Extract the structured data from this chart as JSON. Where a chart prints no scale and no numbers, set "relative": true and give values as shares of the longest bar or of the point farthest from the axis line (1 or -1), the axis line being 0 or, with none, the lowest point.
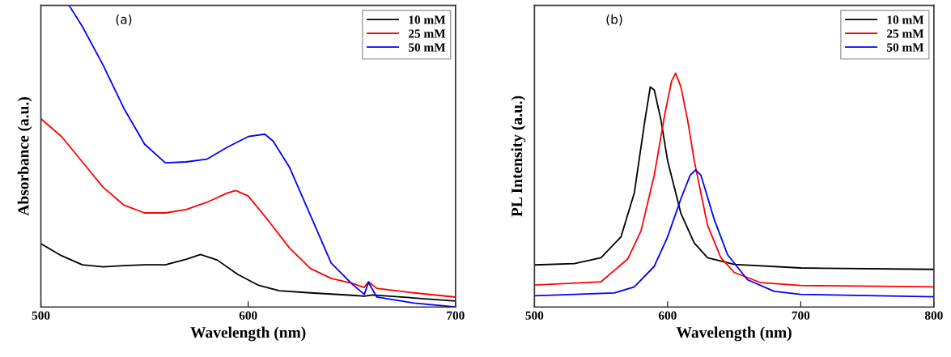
{
  "chart_data": [
    {
      "type": "line",
      "relative": true,
      "xlabel": "Wavelength (nm)",
      "ylabel": "Absorbance (a.u.)",
      "annotations": [
        "(a)"
      ],
      "xlim": [
        500,
        700
      ],
      "xticks": [
        500,
        600,
        700
      ],
      "legend": "top right",
      "grid": false,
      "tick_labels": "x",
      "series": [
        {
          "name": "10 mM",
          "color": "#000000",
          "x": [
            500,
            510,
            520,
            530,
            540,
            550,
            560,
            570,
            577,
            585,
            595,
            605,
            615,
            630,
            650,
            656,
            660,
            680,
            700
          ],
          "values": [
            0.21,
            0.17,
            0.14,
            0.133,
            0.137,
            0.14,
            0.14,
            0.158,
            0.174,
            0.156,
            0.108,
            0.072,
            0.054,
            0.047,
            0.039,
            0.036,
            0.04,
            0.03,
            0.02
          ]
        },
        {
          "name": "25 mM",
          "color": "#ff0000",
          "x": [
            500,
            510,
            520,
            530,
            540,
            550,
            560,
            570,
            580,
            590,
            594,
            600,
            610,
            620,
            630,
            640,
            650,
            656,
            658,
            662,
            680,
            700
          ],
          "values": [
            0.624,
            0.565,
            0.481,
            0.397,
            0.338,
            0.312,
            0.312,
            0.323,
            0.347,
            0.378,
            0.386,
            0.368,
            0.284,
            0.195,
            0.128,
            0.095,
            0.079,
            0.065,
            0.084,
            0.062,
            0.047,
            0.033
          ]
        },
        {
          "name": "50 mM",
          "color": "#0000ff",
          "x": [
            513.6,
            520,
            530,
            540,
            550,
            560,
            570,
            580,
            590,
            600,
            608,
            612,
            620,
            630,
            640,
            650,
            656,
            658,
            662,
            680,
            700
          ],
          "values": [
            1.0,
            0.93,
            0.802,
            0.659,
            0.54,
            0.478,
            0.481,
            0.49,
            0.53,
            0.565,
            0.573,
            0.55,
            0.462,
            0.304,
            0.146,
            0.077,
            0.042,
            0.082,
            0.033,
            0.013,
            0.0
          ]
        }
      ]
    },
    {
      "type": "line",
      "relative": true,
      "xlabel": "Wavelength (nm)",
      "ylabel": "PL Intensity (a.u.)",
      "annotations": [
        "(b)"
      ],
      "xlim": [
        500,
        800
      ],
      "xticks": [
        500,
        600,
        700,
        800
      ],
      "legend": "top right",
      "grid": false,
      "tick_labels": "x",
      "series": [
        {
          "name": "10 mM",
          "color": "#000000",
          "x": [
            500,
            530,
            550,
            565,
            575,
            583,
            587,
            590,
            595,
            600,
            610,
            620,
            630,
            650,
            700,
            800
          ],
          "values": [
            0.18,
            0.186,
            0.211,
            0.3,
            0.488,
            0.8,
            0.941,
            0.928,
            0.8,
            0.626,
            0.4,
            0.274,
            0.211,
            0.182,
            0.167,
            0.161
          ]
        },
        {
          "name": "25 mM",
          "color": "#ff0000",
          "x": [
            500,
            550,
            570,
            580,
            590,
            598,
            603,
            606,
            610,
            615,
            620,
            630,
            640,
            650,
            670,
            700,
            800
          ],
          "values": [
            0.094,
            0.108,
            0.205,
            0.325,
            0.564,
            0.828,
            0.966,
            1.0,
            0.941,
            0.8,
            0.626,
            0.35,
            0.211,
            0.148,
            0.104,
            0.092,
            0.086
          ]
        },
        {
          "name": "50 mM",
          "color": "#0000ff",
          "x": [
            500,
            560,
            575,
            590,
            600,
            610,
            617,
            621,
            625,
            635,
            645,
            660,
            680,
            700,
            800
          ],
          "values": [
            0.048,
            0.06,
            0.086,
            0.174,
            0.3,
            0.463,
            0.564,
            0.586,
            0.564,
            0.375,
            0.224,
            0.117,
            0.067,
            0.054,
            0.044
          ]
        }
      ]
    }
  ]
}
